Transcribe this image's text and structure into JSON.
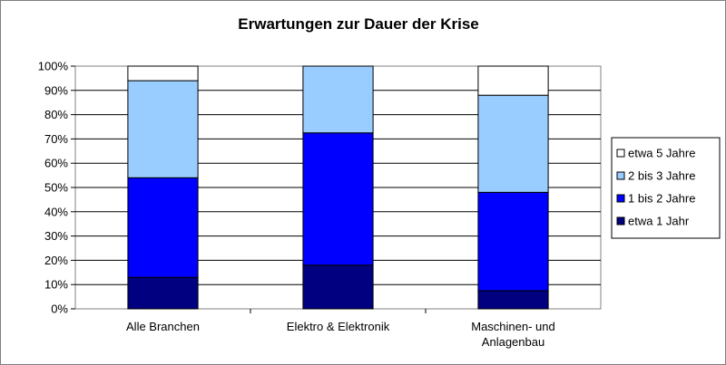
{
  "chart_data": {
    "type": "bar",
    "stacked": true,
    "percent": true,
    "title": "Erwartungen zur Dauer der Krise",
    "xlabel": "",
    "ylabel": "",
    "ylim": [
      0,
      100
    ],
    "yticks": [
      "0%",
      "10%",
      "20%",
      "30%",
      "40%",
      "50%",
      "60%",
      "70%",
      "80%",
      "90%",
      "100%"
    ],
    "grid": true,
    "legend_position": "right",
    "categories": [
      [
        "Alle Branchen"
      ],
      [
        "Elektro & Elektronik"
      ],
      [
        "Maschinen- und",
        "Anlagenbau"
      ]
    ],
    "series": [
      {
        "name": "etwa 1 Jahr",
        "color": "#000080",
        "values": [
          13,
          18,
          7.5
        ]
      },
      {
        "name": "1 bis 2 Jahre",
        "color": "#0000ff",
        "values": [
          41,
          54.5,
          40.5
        ]
      },
      {
        "name": "2 bis 3 Jahre",
        "color": "#99ccff",
        "values": [
          40,
          27.5,
          40
        ]
      },
      {
        "name": "etwa 5 Jahre",
        "color": "#ffffff",
        "values": [
          6,
          0,
          12
        ]
      }
    ]
  }
}
